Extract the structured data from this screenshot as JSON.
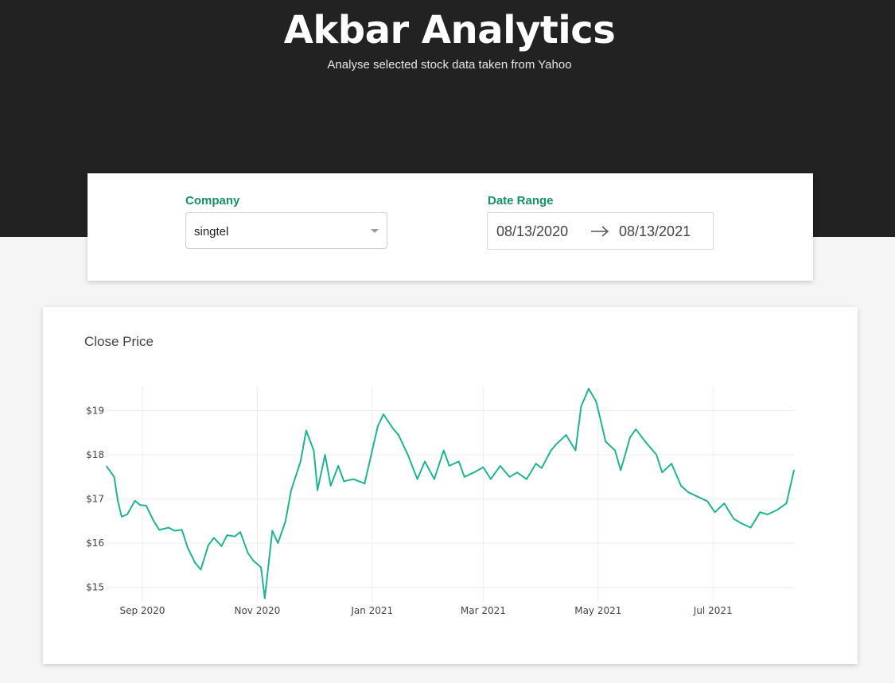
{
  "header": {
    "title": "Akbar Analytics",
    "subtitle": "Analyse selected stock data taken from Yahoo"
  },
  "filters": {
    "company_label": "Company",
    "company_value": "singtel",
    "date_label": "Date Range",
    "date_start": "08/13/2020",
    "date_end": "08/13/2021"
  },
  "colors": {
    "accent": "#13906b",
    "line": "#1fb395",
    "header_bg": "#222222"
  },
  "icons": {
    "select": "chevron-down-icon",
    "range": "arrow-right-icon"
  },
  "chart_data": {
    "type": "line",
    "title": "Close Price",
    "xlabel": "",
    "ylabel": "",
    "grid": true,
    "legend": "none",
    "x_ticks": [
      {
        "date": "2020-09-01",
        "label": "Sep 2020"
      },
      {
        "date": "2020-11-01",
        "label": "Nov 2020"
      },
      {
        "date": "2021-01-01",
        "label": "Jan 2021"
      },
      {
        "date": "2021-03-01",
        "label": "Mar 2021"
      },
      {
        "date": "2021-05-01",
        "label": "May 2021"
      },
      {
        "date": "2021-07-01",
        "label": "Jul 2021"
      }
    ],
    "y_ticks": [
      {
        "value": 15,
        "label": "$15"
      },
      {
        "value": 16,
        "label": "$16"
      },
      {
        "value": 17,
        "label": "$17"
      },
      {
        "value": 18,
        "label": "$18"
      },
      {
        "value": 19,
        "label": "$19"
      }
    ],
    "xlim": [
      "2020-08-13",
      "2021-08-13"
    ],
    "ylim": [
      14.65,
      19.55
    ],
    "series": [
      {
        "x": [
          "2020-08-13",
          "2020-08-17",
          "2020-08-19",
          "2020-08-21",
          "2020-08-24",
          "2020-08-28",
          "2020-08-31",
          "2020-09-03",
          "2020-09-07",
          "2020-09-10",
          "2020-09-15",
          "2020-09-18",
          "2020-09-22",
          "2020-09-25",
          "2020-09-29",
          "2020-10-02",
          "2020-10-06",
          "2020-10-09",
          "2020-10-13",
          "2020-10-16",
          "2020-10-20",
          "2020-10-23",
          "2020-10-27",
          "2020-10-30",
          "2020-11-03",
          "2020-11-05",
          "2020-11-09",
          "2020-11-12",
          "2020-11-16",
          "2020-11-19",
          "2020-11-24",
          "2020-11-27",
          "2020-12-01",
          "2020-12-03",
          "2020-12-07",
          "2020-12-10",
          "2020-12-14",
          "2020-12-17",
          "2020-12-22",
          "2020-12-28",
          "2021-01-04",
          "2021-01-07",
          "2021-01-12",
          "2021-01-15",
          "2021-01-20",
          "2021-01-25",
          "2021-01-29",
          "2021-02-03",
          "2021-02-08",
          "2021-02-11",
          "2021-02-16",
          "2021-02-19",
          "2021-02-24",
          "2021-03-01",
          "2021-03-05",
          "2021-03-10",
          "2021-03-15",
          "2021-03-19",
          "2021-03-24",
          "2021-03-29",
          "2021-04-01",
          "2021-04-06",
          "2021-04-09",
          "2021-04-14",
          "2021-04-19",
          "2021-04-22",
          "2021-04-26",
          "2021-04-30",
          "2021-05-05",
          "2021-05-10",
          "2021-05-13",
          "2021-05-18",
          "2021-05-21",
          "2021-05-26",
          "2021-06-01",
          "2021-06-04",
          "2021-06-09",
          "2021-06-14",
          "2021-06-18",
          "2021-06-23",
          "2021-06-28",
          "2021-07-02",
          "2021-07-07",
          "2021-07-12",
          "2021-07-16",
          "2021-07-21",
          "2021-07-26",
          "2021-07-30",
          "2021-08-04",
          "2021-08-09",
          "2021-08-13"
        ],
        "y": [
          17.74,
          17.5,
          16.95,
          16.6,
          16.65,
          16.96,
          16.86,
          16.85,
          16.5,
          16.3,
          16.35,
          16.28,
          16.3,
          15.9,
          15.55,
          15.4,
          15.95,
          16.12,
          15.93,
          16.18,
          16.15,
          16.25,
          15.78,
          15.6,
          15.45,
          14.75,
          16.28,
          16.0,
          16.5,
          17.2,
          17.85,
          18.55,
          18.1,
          17.2,
          18.0,
          17.3,
          17.75,
          17.4,
          17.45,
          17.35,
          18.65,
          18.92,
          18.6,
          18.45,
          18.0,
          17.45,
          17.85,
          17.45,
          18.1,
          17.75,
          17.85,
          17.5,
          17.6,
          17.72,
          17.45,
          17.75,
          17.5,
          17.6,
          17.45,
          17.8,
          17.7,
          18.1,
          18.25,
          18.45,
          18.1,
          19.1,
          19.5,
          19.2,
          18.3,
          18.1,
          17.65,
          18.4,
          18.58,
          18.3,
          18.0,
          17.6,
          17.8,
          17.3,
          17.15,
          17.05,
          16.95,
          16.7,
          16.9,
          16.55,
          16.45,
          16.35,
          16.7,
          16.65,
          16.75,
          16.9,
          17.65
        ]
      }
    ]
  }
}
